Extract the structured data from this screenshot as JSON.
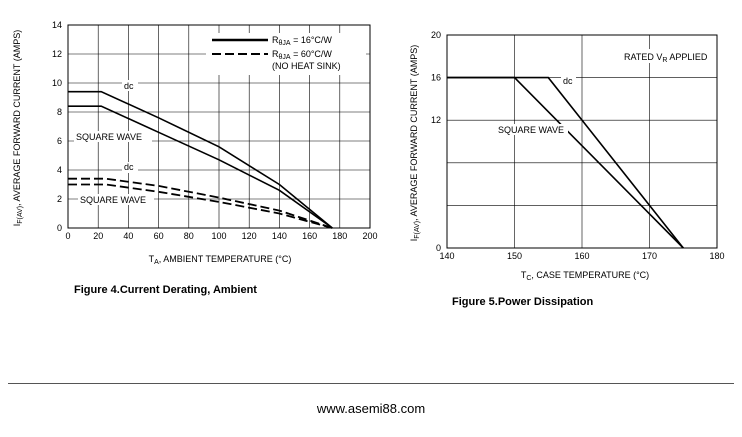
{
  "chart_data": [
    {
      "type": "line",
      "xlabel_main": "T",
      "xlabel_sub": "A",
      "xlabel_rest": ", AMBIENT TEMPERATURE (°C)",
      "ylabel_main": "I",
      "ylabel_sub": "F(AV)",
      "ylabel_rest": ", AVERAGE FORWARD CURRENT (AMPS)",
      "xlim": [
        0,
        200
      ],
      "ylim": [
        0,
        14
      ],
      "x_ticks": [
        "0",
        "20",
        "40",
        "60",
        "80",
        "100",
        "120",
        "140",
        "160",
        "180",
        "200"
      ],
      "y_ticks": [
        "0",
        "2",
        "4",
        "6",
        "8",
        "10",
        "12",
        "14"
      ],
      "grid": true,
      "caption": "Figure 4.Current  Derating, Ambient",
      "legend": {
        "position": "top-right",
        "entries": [
          {
            "line": "solid",
            "main": "R",
            "sub": "θJA",
            "rest": " = 16°C/W"
          },
          {
            "line": "dashed",
            "main": "R",
            "sub": "θJA",
            "rest": " = 60°C/W"
          }
        ],
        "note": "(NO HEAT SINK)"
      },
      "annotations": [
        "dc",
        "SQUARE WAVE",
        "dc",
        "SQUARE WAVE"
      ],
      "series": [
        {
          "style": "solid",
          "x": [
            0,
            22,
            60,
            100,
            140,
            175
          ],
          "y": [
            9.4,
            9.4,
            7.6,
            5.6,
            3.0,
            0
          ]
        },
        {
          "style": "solid",
          "x": [
            0,
            22,
            60,
            100,
            140,
            175
          ],
          "y": [
            8.4,
            8.4,
            6.6,
            4.7,
            2.6,
            0
          ]
        },
        {
          "style": "dashed",
          "x": [
            0,
            25,
            60,
            100,
            140,
            175
          ],
          "y": [
            3.4,
            3.4,
            2.9,
            2.1,
            1.2,
            0
          ]
        },
        {
          "style": "dashed",
          "x": [
            0,
            25,
            60,
            100,
            140,
            175
          ],
          "y": [
            3.0,
            3.0,
            2.5,
            1.8,
            1.0,
            0
          ]
        }
      ]
    },
    {
      "type": "line",
      "xlabel_main": "T",
      "xlabel_sub": "C",
      "xlabel_rest": ", CASE TEMPERATURE (°C)",
      "ylabel_main": "I",
      "ylabel_sub": "F(AV)",
      "ylabel_rest": ", AVERAGE FORWARD CURRENT (AMPS)",
      "xlim": [
        140,
        180
      ],
      "ylim": [
        0,
        20
      ],
      "x_ticks": [
        "140",
        "150",
        "160",
        "170",
        "180"
      ],
      "y_ticks": [
        "0",
        "12",
        "16",
        "20"
      ],
      "grid": true,
      "caption": "Figure 5.Power  Dissipation",
      "note_main": "RATED V",
      "note_sub": "R",
      "note_rest": " APPLIED",
      "annotations": [
        "dc",
        "SQUARE WAVE"
      ],
      "series": [
        {
          "style": "solid",
          "x": [
            140,
            155,
            175
          ],
          "y": [
            16,
            16,
            0
          ]
        },
        {
          "style": "solid",
          "x": [
            140,
            150,
            175
          ],
          "y": [
            16,
            16,
            0
          ]
        }
      ]
    }
  ],
  "footer": "www.asemi88.com"
}
